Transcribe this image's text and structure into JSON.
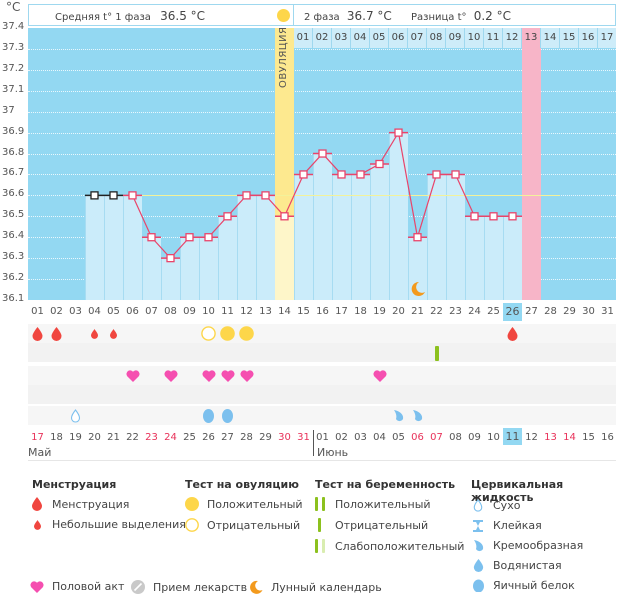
{
  "header": {
    "unit_label": "°C",
    "phase1_label": "Средняя t° 1 фаза",
    "phase1_value": "36.5 °C",
    "phase2_label": "2 фаза",
    "phase2_value": "36.7 °C",
    "diff_label": "Разница t°",
    "diff_value": "0.2 °C",
    "ovulation_label": "ОВУЛЯЦИЯ",
    "next_cycle_days": [
      "01",
      "02",
      "03",
      "04",
      "05",
      "06",
      "07",
      "08",
      "09",
      "10",
      "11",
      "12",
      "13",
      "14",
      "15",
      "16",
      "17"
    ],
    "next_cycle_highlight": "13"
  },
  "chart_data": {
    "type": "line",
    "title": "",
    "xlabel": "День цикла",
    "ylabel": "°C",
    "ylim": [
      36.1,
      37.4
    ],
    "yticks": [
      "37.4",
      "37.3",
      "37.2",
      "37.1",
      "37",
      "36.9",
      "36.8",
      "36.7",
      "36.6",
      "36.5",
      "36.4",
      "36.3",
      "36.2",
      "36.1"
    ],
    "grid": true,
    "categories": [
      "01",
      "02",
      "03",
      "04",
      "05",
      "06",
      "07",
      "08",
      "09",
      "10",
      "11",
      "12",
      "13",
      "14",
      "15",
      "16",
      "17",
      "18",
      "19",
      "20",
      "21",
      "22",
      "23",
      "24",
      "25",
      "26",
      "27",
      "28",
      "29",
      "30",
      "31"
    ],
    "series": [
      {
        "name": "Базальная температура",
        "values": [
          null,
          null,
          null,
          36.6,
          36.6,
          36.6,
          36.4,
          36.3,
          36.4,
          36.4,
          36.5,
          36.6,
          36.6,
          36.5,
          36.7,
          36.8,
          36.7,
          36.7,
          36.75,
          36.9,
          36.4,
          36.7,
          36.7,
          36.5,
          36.5,
          36.5,
          null,
          null,
          null,
          null,
          null
        ]
      }
    ],
    "excluded_points": [
      "04",
      "05"
    ],
    "cover_line": 36.6,
    "ovulation_day": "14",
    "predicted_period_day": "27",
    "today_cycle_day": "26",
    "moon_day": "21"
  },
  "colors": {
    "plot_bg": "#93d8f2",
    "bar_fill": "#cbecfa",
    "line": "#e9446a",
    "ovulation": "#fde98f",
    "period_predicted": "#f7b5c8",
    "weekend": "#e8325a",
    "cover_line": "#f3f29a"
  },
  "calendar": {
    "dates": [
      "17",
      "18",
      "19",
      "20",
      "21",
      "22",
      "23",
      "24",
      "25",
      "26",
      "27",
      "28",
      "29",
      "30",
      "31",
      "01",
      "02",
      "03",
      "04",
      "05",
      "06",
      "07",
      "08",
      "09",
      "10",
      "11",
      "12",
      "13",
      "14",
      "15",
      "16"
    ],
    "weekend_indices": [
      0,
      6,
      7,
      13,
      14,
      20,
      21,
      27,
      28
    ],
    "today_index": 25,
    "months": [
      "Май",
      "Июнь"
    ]
  },
  "markers": {
    "menstruation": [
      {
        "day": "01",
        "type": "heavy"
      },
      {
        "day": "02",
        "type": "heavy"
      },
      {
        "day": "04",
        "type": "light"
      },
      {
        "day": "05",
        "type": "light"
      },
      {
        "day": "26",
        "type": "heavy"
      }
    ],
    "ovulation_test": [
      {
        "day": "10",
        "type": "negative"
      },
      {
        "day": "11",
        "type": "positive"
      },
      {
        "day": "12",
        "type": "positive"
      }
    ],
    "pregnancy_test": [
      {
        "day": "22",
        "type": "negative"
      }
    ],
    "intercourse": [
      "06",
      "08",
      "10",
      "11",
      "12",
      "19"
    ],
    "cervical_fluid": [
      {
        "day": "03",
        "type": "dry"
      },
      {
        "day": "10",
        "type": "egg-white"
      },
      {
        "day": "11",
        "type": "egg-white"
      },
      {
        "day": "20",
        "type": "creamy"
      },
      {
        "day": "21",
        "type": "creamy"
      }
    ]
  },
  "legend": {
    "menstruation": {
      "title": "Менструация",
      "items": [
        "Менструация",
        "Небольшие выделения"
      ]
    },
    "ovulation_test": {
      "title": "Тест на овуляцию",
      "items": [
        "Положительный",
        "Отрицательный"
      ]
    },
    "pregnancy_test": {
      "title": "Тест на беременность",
      "items": [
        "Положительный",
        "Отрицательный",
        "Слабоположительный"
      ]
    },
    "cervical_fluid": {
      "title": "Цервикальная жидкость",
      "items": [
        "Сухо",
        "Клейкая",
        "Кремообразная",
        "Водянистая",
        "Яичный белок"
      ]
    },
    "other": [
      "Половой акт",
      "Прием лекарств",
      "Лунный календарь"
    ]
  }
}
